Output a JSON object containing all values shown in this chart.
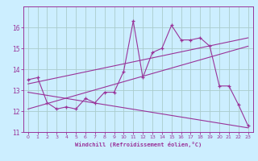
{
  "xlabel": "Windchill (Refroidissement éolien,°C)",
  "background_color": "#cceeff",
  "line_color": "#993399",
  "grid_color": "#aacccc",
  "xlim": [
    -0.5,
    23.5
  ],
  "ylim": [
    11,
    17
  ],
  "yticks": [
    11,
    12,
    13,
    14,
    15,
    16
  ],
  "xticks": [
    0,
    1,
    2,
    3,
    4,
    5,
    6,
    7,
    8,
    9,
    10,
    11,
    12,
    13,
    14,
    15,
    16,
    17,
    18,
    19,
    20,
    21,
    22,
    23
  ],
  "series1_x": [
    0,
    1,
    2,
    3,
    4,
    5,
    6,
    7,
    8,
    9,
    10,
    11,
    12,
    13,
    14,
    15,
    16,
    17,
    18,
    19,
    20,
    21,
    22,
    23
  ],
  "series1_y": [
    13.5,
    13.6,
    12.4,
    12.1,
    12.2,
    12.1,
    12.6,
    12.4,
    12.9,
    12.9,
    13.9,
    16.3,
    13.6,
    14.8,
    15.0,
    16.1,
    15.4,
    15.4,
    15.5,
    15.1,
    13.2,
    13.2,
    12.3,
    11.3
  ],
  "series2_x": [
    0,
    23
  ],
  "series2_y": [
    13.3,
    15.5
  ],
  "series3_x": [
    0,
    23
  ],
  "series3_y": [
    12.9,
    11.2
  ],
  "series4_x": [
    0,
    23
  ],
  "series4_y": [
    12.1,
    15.1
  ]
}
